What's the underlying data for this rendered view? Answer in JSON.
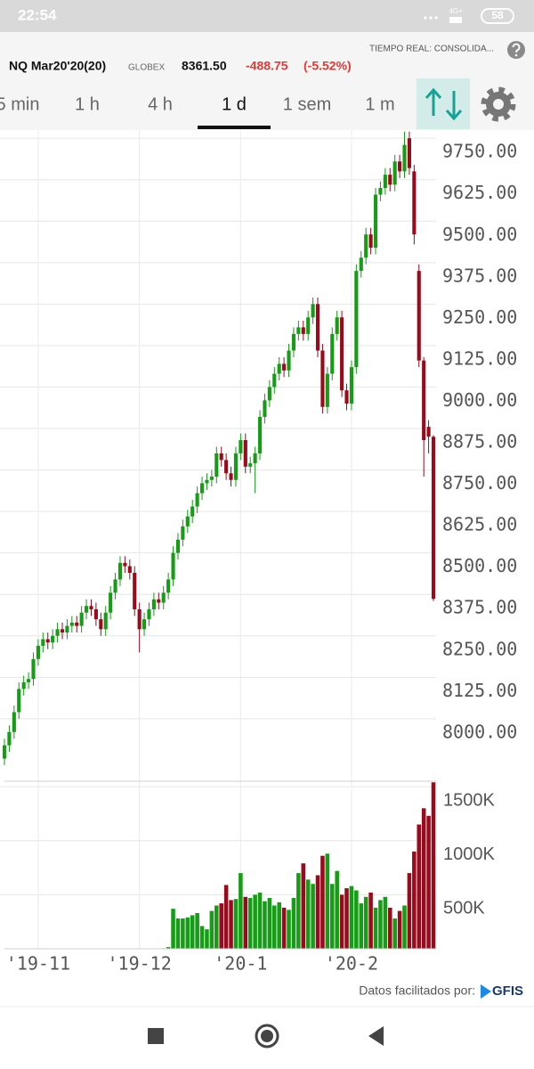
{
  "status_bar": {
    "time": "22:54",
    "network": "4G+",
    "battery": "58"
  },
  "header": {
    "realtime": "TIEMPO REAL: CONSOLIDA...",
    "symbol": "NQ Mar20'20(20)",
    "exchange": "GLOBEX",
    "price": "8361.50",
    "change": "-488.75",
    "change_pct": "(-5.52%)"
  },
  "tabs": {
    "items": [
      "5 min",
      "1 h",
      "4 h",
      "1 d",
      "1 sem",
      "1 m"
    ],
    "active": 3
  },
  "footer": {
    "credit": "Datos facilitados por:",
    "provider": "GFIS"
  },
  "chart_data": [
    {
      "type": "candlestick",
      "categories": [
        null,
        null,
        null,
        null,
        null,
        null,
        null,
        "'19-11",
        null,
        null,
        null,
        null,
        null,
        null,
        null,
        null,
        null,
        null,
        null,
        null,
        null,
        null,
        null,
        null,
        null,
        null,
        null,
        null,
        "'19-12",
        null,
        null,
        null,
        null,
        null,
        null,
        null,
        null,
        null,
        null,
        null,
        null,
        null,
        null,
        null,
        null,
        null,
        null,
        null,
        null,
        "'20-1",
        null,
        null,
        null,
        null,
        null,
        null,
        null,
        null,
        null,
        null,
        null,
        null,
        null,
        null,
        null,
        null,
        null,
        null,
        null,
        null,
        null,
        null,
        "'20-2",
        null,
        null,
        null,
        null,
        null,
        null,
        null,
        null,
        null,
        null,
        null,
        null,
        null,
        null,
        null,
        null,
        null
      ],
      "open": [
        7880,
        7920,
        7960,
        8020,
        8090,
        8110,
        8120,
        8180,
        8220,
        8240,
        8230,
        8250,
        8270,
        8260,
        8280,
        8290,
        8280,
        8320,
        8340,
        8330,
        8300,
        8270,
        8320,
        8380,
        8420,
        8470,
        8460,
        8440,
        8330,
        8270,
        8300,
        8330,
        8360,
        8350,
        8380,
        8420,
        8500,
        8540,
        8580,
        8610,
        8640,
        8680,
        8710,
        8720,
        8730,
        8800,
        8780,
        8740,
        8720,
        8800,
        8840,
        8760,
        8770,
        8800,
        8910,
        8960,
        9000,
        9040,
        9070,
        9050,
        9110,
        9160,
        9180,
        9160,
        9210,
        9250,
        9110,
        8940,
        9040,
        9160,
        9210,
        8990,
        8950,
        9060,
        9350,
        9390,
        9460,
        9420,
        9580,
        9600,
        9640,
        9610,
        9680,
        9650,
        9750,
        9650,
        9350,
        9080,
        8880,
        8850
      ],
      "high": [
        7940,
        7980,
        8040,
        8110,
        8130,
        8140,
        8200,
        8240,
        8260,
        8260,
        8270,
        8290,
        8290,
        8300,
        8310,
        8310,
        8340,
        8360,
        8360,
        8350,
        8320,
        8340,
        8400,
        8440,
        8490,
        8490,
        8480,
        8460,
        8350,
        8320,
        8350,
        8380,
        8380,
        8400,
        8440,
        8520,
        8560,
        8600,
        8630,
        8660,
        8700,
        8730,
        8740,
        8750,
        8820,
        8820,
        8800,
        8760,
        8820,
        8860,
        8860,
        8790,
        8820,
        8930,
        8980,
        9020,
        9060,
        9090,
        9090,
        9130,
        9180,
        9200,
        9200,
        9230,
        9270,
        9270,
        9130,
        9060,
        9180,
        9230,
        9230,
        9010,
        9080,
        9370,
        9410,
        9480,
        9480,
        9600,
        9620,
        9660,
        9660,
        9700,
        9700,
        9770,
        9770,
        9670,
        9370,
        9090,
        8900,
        8855
      ],
      "low": [
        7860,
        7900,
        7940,
        8000,
        8070,
        8090,
        8100,
        8160,
        8200,
        8210,
        8210,
        8230,
        8240,
        8240,
        8260,
        8260,
        8260,
        8300,
        8310,
        8280,
        8250,
        8250,
        8300,
        8360,
        8400,
        8440,
        8420,
        8310,
        8200,
        8250,
        8280,
        8310,
        8330,
        8330,
        8360,
        8400,
        8480,
        8520,
        8560,
        8590,
        8620,
        8660,
        8690,
        8700,
        8710,
        8760,
        8720,
        8700,
        8700,
        8780,
        8740,
        8740,
        8680,
        8780,
        8890,
        8940,
        8980,
        9020,
        9030,
        9030,
        9090,
        9140,
        9140,
        9140,
        9190,
        9090,
        8920,
        8920,
        9020,
        9140,
        8970,
        8930,
        8930,
        9040,
        9330,
        9370,
        9400,
        9400,
        9560,
        9580,
        9590,
        9590,
        9630,
        9630,
        9640,
        9430,
        9060,
        8730,
        8800,
        8355
      ],
      "close": [
        7920,
        7960,
        8020,
        8090,
        8110,
        8120,
        8180,
        8220,
        8240,
        8230,
        8250,
        8270,
        8260,
        8280,
        8290,
        8280,
        8320,
        8340,
        8330,
        8300,
        8270,
        8320,
        8380,
        8420,
        8470,
        8460,
        8440,
        8330,
        8270,
        8300,
        8330,
        8360,
        8350,
        8380,
        8420,
        8500,
        8540,
        8580,
        8610,
        8640,
        8680,
        8710,
        8720,
        8730,
        8800,
        8780,
        8740,
        8720,
        8800,
        8840,
        8760,
        8770,
        8800,
        8910,
        8960,
        9000,
        9040,
        9070,
        9050,
        9110,
        9160,
        9180,
        9160,
        9210,
        9250,
        9110,
        8940,
        9040,
        9160,
        9210,
        8990,
        8950,
        9060,
        9350,
        9390,
        9460,
        9420,
        9580,
        9600,
        9640,
        9610,
        9680,
        9650,
        9730,
        9660,
        9460,
        9080,
        8840,
        8850.25,
        8361.5
      ],
      "up_color": "#169c16",
      "down_color": "#990b1c",
      "ylim": [
        7860,
        9780
      ],
      "yticks": [
        {
          "value": 9750,
          "label": "9750.00"
        },
        {
          "value": 9625,
          "label": "9625.00"
        },
        {
          "value": 9500,
          "label": "9500.00"
        },
        {
          "value": 9375,
          "label": "9375.00"
        },
        {
          "value": 9250,
          "label": "9250.00"
        },
        {
          "value": 9125,
          "label": "9125.00"
        },
        {
          "value": 9000,
          "label": "9000.00"
        },
        {
          "value": 8875,
          "label": "8875.00"
        },
        {
          "value": 8750,
          "label": "8750.00"
        },
        {
          "value": 8625,
          "label": "8625.00"
        },
        {
          "value": 8500,
          "label": "8500.00"
        },
        {
          "value": 8375,
          "label": "8375.00"
        },
        {
          "value": 8250,
          "label": "8250.00"
        },
        {
          "value": 8125,
          "label": "8125.00"
        },
        {
          "value": 8000,
          "label": "8000.00"
        }
      ],
      "grid": true
    },
    {
      "type": "bar",
      "values": [
        0,
        0,
        0,
        0,
        0,
        0,
        0,
        0,
        0,
        0,
        0,
        0,
        0,
        0,
        0,
        0,
        0,
        0,
        0,
        0,
        0,
        0,
        0,
        0,
        0,
        0,
        0,
        0,
        0,
        0,
        0,
        0,
        0,
        5000,
        15000,
        370000,
        280000,
        280000,
        290000,
        310000,
        330000,
        210000,
        180000,
        350000,
        400000,
        420000,
        590000,
        450000,
        460000,
        700000,
        480000,
        470000,
        500000,
        520000,
        440000,
        470000,
        400000,
        430000,
        380000,
        360000,
        470000,
        700000,
        790000,
        640000,
        600000,
        680000,
        860000,
        880000,
        600000,
        720000,
        500000,
        560000,
        580000,
        540000,
        420000,
        480000,
        520000,
        380000,
        450000,
        480000,
        380000,
        280000,
        350000,
        400000,
        700000,
        900000,
        1150000,
        1300000,
        1230000,
        1540000
      ],
      "up_color": "#169c16",
      "down_color": "#990b1c",
      "ylim": [
        0,
        1550000
      ],
      "yticks": [
        {
          "value": 500000,
          "label": "500K"
        },
        {
          "value": 1000000,
          "label": "1000K"
        },
        {
          "value": 1500000,
          "label": "1500K"
        }
      ],
      "grid": true
    }
  ]
}
